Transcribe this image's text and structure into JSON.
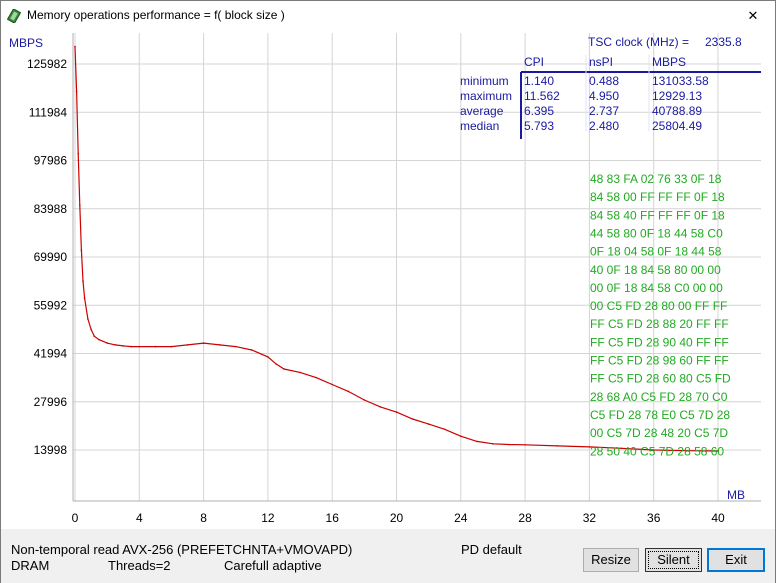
{
  "window": {
    "title": "Memory operations performance = f( block size )",
    "close_glyph": "✕"
  },
  "chart_data": {
    "type": "line",
    "ylabel": "MBPS",
    "xlabel": "MB",
    "ylim": [
      0,
      140000
    ],
    "xlim": [
      0,
      40
    ],
    "y_ticks": [
      125982,
      111984,
      97986,
      83988,
      69990,
      55992,
      41994,
      27996,
      13998
    ],
    "y_tick_labels": [
      "125982",
      "111984",
      "97986",
      "83988",
      "69990",
      "55992",
      "41994",
      "27996",
      "13998"
    ],
    "x_ticks": [
      0,
      4,
      8,
      12,
      16,
      20,
      24,
      28,
      32,
      36,
      40
    ],
    "x_tick_labels": [
      "0",
      "4",
      "8",
      "12",
      "16",
      "20",
      "24",
      "28",
      "32",
      "36",
      "40"
    ],
    "grid": true,
    "line_color": "#cc0000",
    "series": [
      {
        "x": [
          0,
          0.1,
          0.2,
          0.3,
          0.4,
          0.5,
          0.6,
          0.8,
          1.0,
          1.2,
          1.5,
          2.0,
          2.5,
          3.0,
          3.5,
          4.0,
          5.0,
          6.0,
          7.0,
          8.0,
          9.0,
          10.0,
          11.0,
          12.0,
          12.5,
          13.0,
          14.0,
          15.0,
          16.0,
          17.0,
          18.0,
          19.0,
          20.0,
          21.0,
          22.0,
          23.0,
          24.0,
          25.0,
          26.0,
          27.0,
          28.0,
          30.0,
          32.0,
          34.0,
          36.0,
          38.0,
          40.0
        ],
        "y": [
          131033,
          118000,
          100000,
          85000,
          72000,
          63000,
          58000,
          52000,
          49000,
          47000,
          46000,
          45000,
          44500,
          44200,
          44000,
          44000,
          44000,
          44000,
          44500,
          45000,
          44500,
          44000,
          43000,
          41000,
          39000,
          37500,
          36500,
          35000,
          33000,
          31000,
          28500,
          26500,
          25000,
          23000,
          21500,
          20000,
          18000,
          16500,
          15800,
          15600,
          15500,
          15200,
          14900,
          14500,
          14000,
          13800,
          13700
        ]
      }
    ]
  },
  "stats": {
    "tsc_label": "TSC clock (MHz) =",
    "tsc_value": "2335.8",
    "headers": [
      "CPI",
      "nsPI",
      "MBPS"
    ],
    "rows": [
      {
        "label": "minimum",
        "cpi": "1.140",
        "nspi": "0.488",
        "mbps": "131033.58"
      },
      {
        "label": "maximum",
        "cpi": "11.562",
        "nspi": "4.950",
        "mbps": "12929.13"
      },
      {
        "label": "average",
        "cpi": "6.395",
        "nspi": "2.737",
        "mbps": "40788.89"
      },
      {
        "label": "median",
        "cpi": "5.793",
        "nspi": "2.480",
        "mbps": "25804.49"
      }
    ],
    "text_color": "#1a1aa0"
  },
  "hexdump": {
    "color": "#22aa22",
    "lines": [
      "48 83 FA 02 76 33 0F 18",
      "84 58 00 FF FF FF 0F 18",
      "84 58 40 FF FF FF 0F 18",
      "44 58 80 0F 18 44 58 C0",
      "0F 18 04 58 0F 18 44 58",
      "40 0F 18 84 58 80 00 00",
      "00 0F 18 84 58 C0 00 00",
      "00 C5 FD 28 80 00 FF FF",
      "FF C5 FD 28 88 20 FF FF",
      "FF C5 FD 28 90 40 FF FF",
      "FF C5 FD 28 98 60 FF FF",
      "FF C5 FD 28 60 80 C5 FD",
      "28 68 A0 C5 FD 28 70 C0",
      "C5 FD 28 78 E0 C5 7D 28",
      "00 C5 7D 28 48 20 C5 7D",
      "28 50 40 C5 7D 28 58 60"
    ]
  },
  "status": {
    "line1": "Non-temporal read AVX-256 (PREFETCHNTA+VMOVAPD)",
    "line2_a": "DRAM",
    "line2_b": "Threads=2",
    "line2_c": "Carefull adaptive",
    "pd": "PD default"
  },
  "buttons": {
    "resize": "Resize",
    "silent": "Silent",
    "exit": "Exit"
  }
}
